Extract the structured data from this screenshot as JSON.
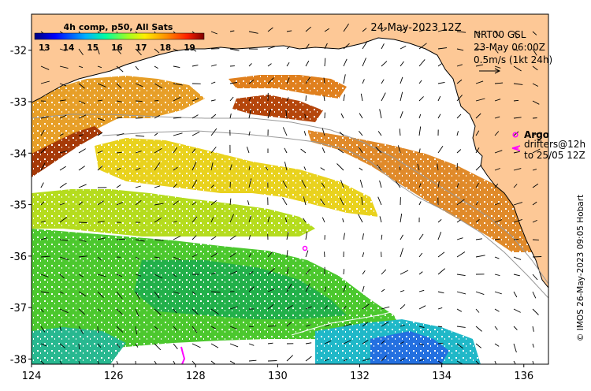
{
  "map": {
    "date_title": "24-May-2023 12Z",
    "product_label": "4h comp, p50, All Sats",
    "colorbar": {
      "ticks": [
        "13",
        "14",
        "15",
        "16",
        "17",
        "18",
        "19"
      ],
      "min": 12.6,
      "max": 19.6,
      "tick_values": [
        13,
        14,
        15,
        16,
        17,
        18,
        19
      ]
    },
    "current_info": {
      "line1": "NRT00 GSL",
      "line2": "23-May 06:00Z",
      "line3": "0.5m/s (1kt 24h)"
    },
    "legend": {
      "argo_label": "Argo",
      "drifters_line1": "drifters@12h",
      "drifters_line2": "to 25/05 12Z"
    },
    "credit": "© IMOS 26-May-2023 09:05 Hobart",
    "x_axis": {
      "ticks": [
        "124",
        "126",
        "128",
        "130",
        "132",
        "134",
        "136"
      ],
      "values": [
        124,
        126,
        128,
        130,
        132,
        134,
        136
      ],
      "range": [
        124,
        136.6
      ]
    },
    "y_axis": {
      "ticks": [
        "-32",
        "-33",
        "-34",
        "-35",
        "-36",
        "-37",
        "-38"
      ],
      "values": [
        -32,
        -33,
        -34,
        -35,
        -36,
        -37,
        -38
      ],
      "range": [
        -38.1,
        -31.3
      ]
    },
    "colors": {
      "land": "#fdc896",
      "frame": "#000000",
      "argo": "#ff00ff"
    }
  }
}
